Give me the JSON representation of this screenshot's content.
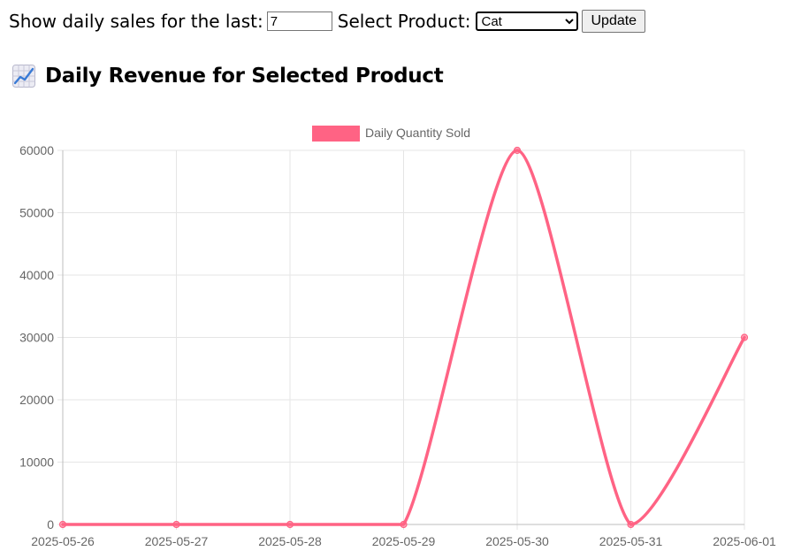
{
  "controls": {
    "days_label": "Show daily sales for the last:",
    "days_value": "7",
    "product_label": "Select Product:",
    "product_selected": "Cat",
    "update_label": "Update"
  },
  "heading": {
    "title": "Daily Revenue for Selected Product",
    "icon": "chart-increasing-icon"
  },
  "chart_data": {
    "type": "line",
    "title": "",
    "xlabel": "",
    "ylabel": "",
    "categories": [
      "2025-05-26",
      "2025-05-27",
      "2025-05-28",
      "2025-05-29",
      "2025-05-30",
      "2025-05-31",
      "2025-06-01"
    ],
    "series": [
      {
        "name": "Daily Quantity Sold",
        "values": [
          0,
          0,
          0,
          0,
          60000,
          0,
          30000
        ],
        "color": "#ff6384"
      }
    ],
    "ylim": [
      0,
      60000
    ],
    "yticks": [
      0,
      10000,
      20000,
      30000,
      40000,
      50000,
      60000
    ],
    "grid": true,
    "legend": "top-center"
  }
}
